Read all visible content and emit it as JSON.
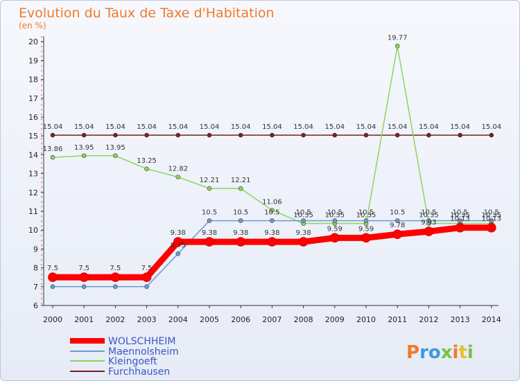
{
  "chart_data": {
    "type": "line",
    "title": "Evolution du Taux de Taxe d'Habitation",
    "subtitle": "(en %)",
    "x": [
      "2000",
      "2001",
      "2002",
      "2003",
      "2004",
      "2005",
      "2006",
      "2007",
      "2008",
      "2009",
      "2010",
      "2011",
      "2012",
      "2013",
      "2014"
    ],
    "ylim": [
      6,
      20
    ],
    "yticks": [
      6,
      7,
      8,
      9,
      10,
      11,
      12,
      13,
      14,
      15,
      16,
      17,
      18,
      19,
      20
    ],
    "grid": false,
    "legend_position": "bottom-left",
    "series": [
      {
        "name": "WOLSCHHEIM",
        "color": "#ff0000",
        "values": [
          7.5,
          7.5,
          7.5,
          7.5,
          9.38,
          9.38,
          9.38,
          9.38,
          9.38,
          9.59,
          9.59,
          9.78,
          9.93,
          10.13,
          10.13
        ],
        "labels": [
          "7.5",
          "7.5",
          "7.5",
          "7.5",
          "9.38",
          "9.38",
          "9.38",
          "9.38",
          "9.38",
          "9.59",
          "9.59",
          "9.78",
          "9.93",
          "10.13",
          "10.13"
        ]
      },
      {
        "name": "Maennolsheim",
        "color": "#6b9ad0",
        "values": [
          7,
          7,
          7,
          7,
          8.75,
          10.5,
          10.5,
          10.5,
          10.5,
          10.5,
          10.5,
          10.5,
          10.5,
          10.5,
          10.5
        ],
        "labels": [
          "",
          "",
          "",
          "",
          "8.75",
          "10.5",
          "10.5",
          "10.5",
          "10.5",
          "10.5",
          "10.5",
          "10.5",
          "10.5",
          "10.5",
          "10.5"
        ]
      },
      {
        "name": "Kleingoeft",
        "color": "#8ed45a",
        "values": [
          13.86,
          13.95,
          13.95,
          13.25,
          12.82,
          12.21,
          12.21,
          11.06,
          10.35,
          10.35,
          10.35,
          19.77,
          10.35,
          10.35,
          10.35
        ],
        "labels": [
          "13.86",
          "13.95",
          "13.95",
          "13.25",
          "12.82",
          "12.21",
          "12.21",
          "11.06",
          "10.35",
          "10.35",
          "10.35",
          "19.77",
          "10.35",
          "10.35",
          "10.35"
        ]
      },
      {
        "name": "Furchhausen",
        "color": "#7a1e22",
        "values": [
          15.04,
          15.04,
          15.04,
          15.04,
          15.04,
          15.04,
          15.04,
          15.04,
          15.04,
          15.04,
          15.04,
          15.04,
          15.04,
          15.04,
          15.04
        ],
        "labels": [
          "15.04",
          "15.04",
          "15.04",
          "15.04",
          "15.04",
          "15.04",
          "15.04",
          "15.04",
          "15.04",
          "15.04",
          "15.04",
          "15.04",
          "15.04",
          "15.04",
          "15.04"
        ]
      }
    ]
  },
  "logo": {
    "text": "Proxiti",
    "colors": [
      "#f07a2a",
      "#3a9be0",
      "#7bc043",
      "#e8c224"
    ]
  }
}
